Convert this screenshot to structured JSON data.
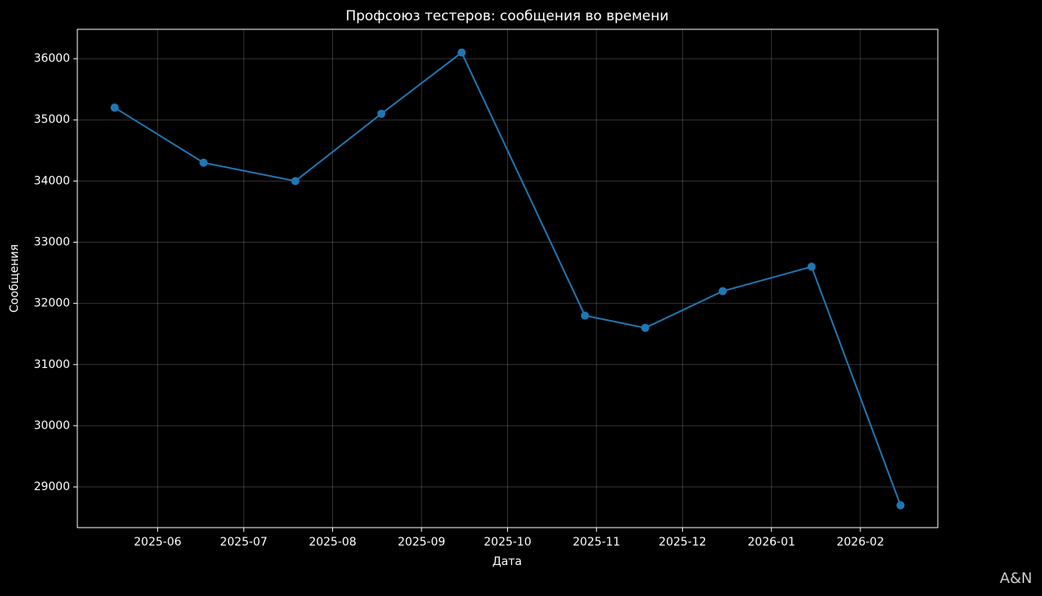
{
  "chart_data": {
    "type": "line",
    "title": "Профсоюз тестеров: сообщения во времени",
    "xlabel": "Дата",
    "ylabel": "Сообщения",
    "x": [
      "2025-05-17",
      "2025-06-17",
      "2025-07-19",
      "2025-08-18",
      "2025-09-15",
      "2025-10-28",
      "2025-11-18",
      "2025-12-15",
      "2026-01-15",
      "2026-02-15"
    ],
    "series": [
      {
        "name": "Сообщения",
        "color": "#1f77b4",
        "values": [
          35200,
          34300,
          34000,
          35100,
          36100,
          31800,
          31600,
          32200,
          32600,
          28700
        ]
      }
    ],
    "xlim": [
      "2025-05-04",
      "2026-02-28"
    ],
    "xticks": [
      {
        "value": "2025-06-01",
        "label": "2025-06"
      },
      {
        "value": "2025-07-01",
        "label": "2025-07"
      },
      {
        "value": "2025-08-01",
        "label": "2025-08"
      },
      {
        "value": "2025-09-01",
        "label": "2025-09"
      },
      {
        "value": "2025-10-01",
        "label": "2025-10"
      },
      {
        "value": "2025-11-01",
        "label": "2025-11"
      },
      {
        "value": "2025-12-01",
        "label": "2025-12"
      },
      {
        "value": "2026-01-01",
        "label": "2026-01"
      },
      {
        "value": "2026-02-01",
        "label": "2026-02"
      }
    ],
    "ylim": [
      28335,
      36480
    ],
    "yticks": [
      29000,
      30000,
      31000,
      32000,
      33000,
      34000,
      35000,
      36000
    ],
    "grid": true,
    "watermark": "A&N"
  }
}
